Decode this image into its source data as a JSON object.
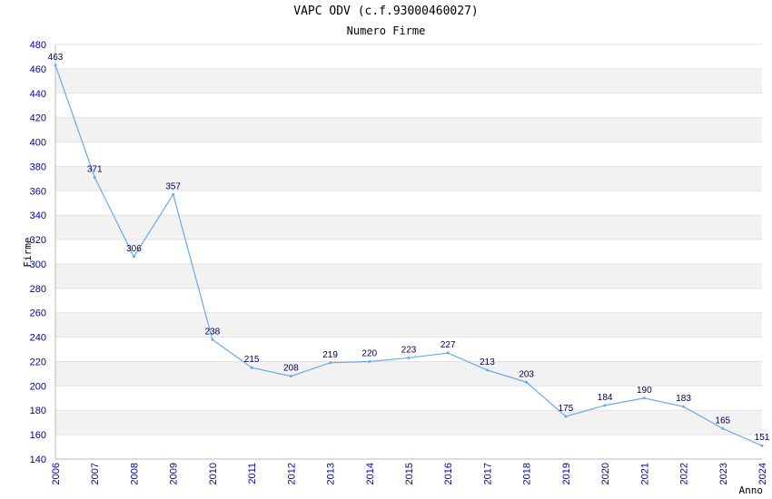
{
  "chart_data": {
    "type": "line",
    "title": "VAPC ODV (c.f.93000460027)",
    "subtitle": "Numero Firme",
    "xlabel": "Anno",
    "ylabel": "Firme",
    "ylim": [
      140,
      480
    ],
    "ytick_step": 20,
    "grid": true,
    "line_color": "#66aaee",
    "categories": [
      "2006",
      "2007",
      "2008",
      "2009",
      "2010",
      "2011",
      "2012",
      "2013",
      "2014",
      "2015",
      "2016",
      "2017",
      "2018",
      "2019",
      "2020",
      "2021",
      "2022",
      "2023",
      "2024"
    ],
    "series": [
      {
        "values": [
          463,
          371,
          306,
          357,
          238,
          215,
          208,
          219,
          220,
          223,
          227,
          213,
          203,
          175,
          184,
          190,
          183,
          165,
          151
        ]
      }
    ]
  }
}
